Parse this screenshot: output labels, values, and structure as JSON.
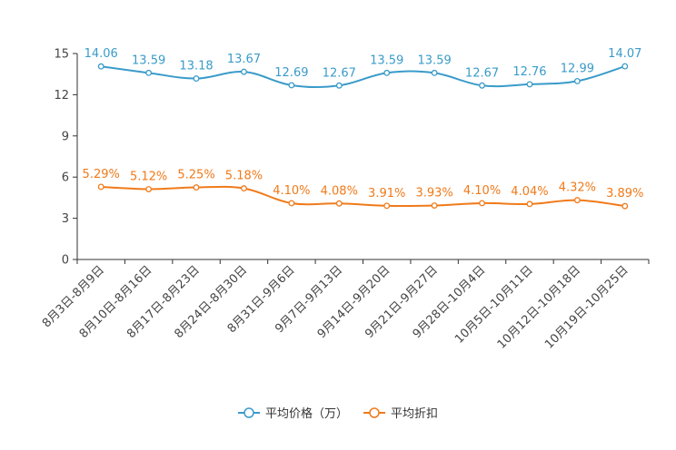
{
  "colors": {
    "price": "#3a9bc9",
    "discount": "#f07a1a",
    "axis": "#333333",
    "tick_text": "#444444"
  },
  "chart_data": {
    "type": "line",
    "title": "",
    "xlabel": "",
    "ylabel": "",
    "ylim": [
      0,
      15
    ],
    "yticks": [
      0,
      3,
      6,
      9,
      12,
      15
    ],
    "grid": false,
    "legend_position": "bottom",
    "categories": [
      "8月3日-8月9日",
      "8月10日-8月16日",
      "8月17日-8月23日",
      "8月24日-8月30日",
      "8月31日-9月6日",
      "9月7日-9月13日",
      "9月14日-9月20日",
      "9月21日-9月27日",
      "9月28日-10月4日",
      "10月5日-10月11日",
      "10月12日-10月18日",
      "10月19日-10月25日"
    ],
    "series": [
      {
        "name": "平均价格（万）",
        "color": "#3a9bc9",
        "values": [
          14.06,
          13.59,
          13.18,
          13.67,
          12.69,
          12.67,
          13.59,
          13.59,
          12.67,
          12.76,
          12.99,
          14.07
        ],
        "labels": [
          "14.06",
          "13.59",
          "13.18",
          "13.67",
          "12.69",
          "12.67",
          "13.59",
          "13.59",
          "12.67",
          "12.76",
          "12.99",
          "14.07"
        ]
      },
      {
        "name": "平均折扣",
        "color": "#f07a1a",
        "values": [
          5.29,
          5.12,
          5.25,
          5.18,
          4.1,
          4.08,
          3.91,
          3.93,
          4.1,
          4.04,
          4.32,
          3.89
        ],
        "labels": [
          "5.29%",
          "5.12%",
          "5.25%",
          "5.18%",
          "4.10%",
          "4.08%",
          "3.91%",
          "3.93%",
          "4.10%",
          "4.04%",
          "4.32%",
          "3.89%"
        ]
      }
    ]
  }
}
